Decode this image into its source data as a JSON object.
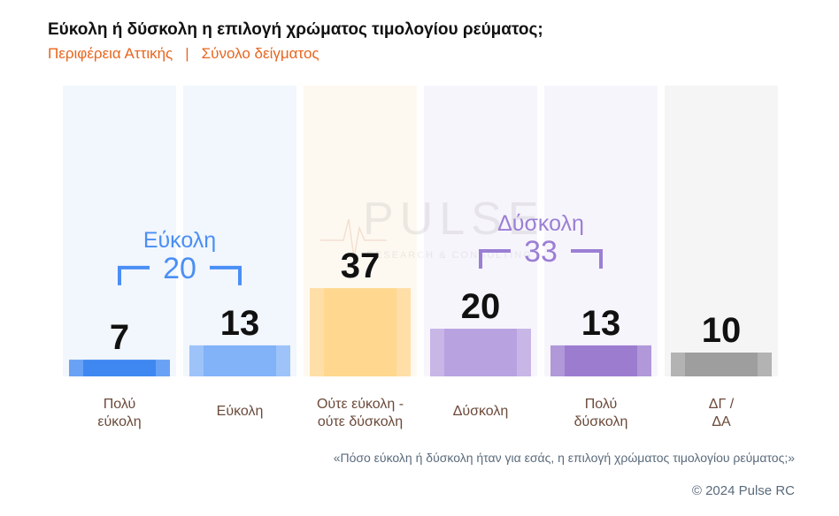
{
  "header": {
    "title": "Εύκολη ή δύσκολη η επιλογή χρώματος τιμολογίου ρεύματος;",
    "subtitle_region": "Περιφέρεια Αττικής",
    "subtitle_sep": "|",
    "subtitle_sample": "Σύνολο δείγματος"
  },
  "watermark": {
    "text": "PULSE",
    "tagline": "RESEARCH & CONSULTING"
  },
  "chart_data": {
    "type": "bar",
    "categories": [
      [
        "Πολύ",
        "εύκολη"
      ],
      [
        "Εύκολη"
      ],
      [
        "Ούτε εύκολη -",
        "ούτε δύσκολη"
      ],
      [
        "Δύσκολη"
      ],
      [
        "Πολύ",
        "δύσκολη"
      ],
      [
        "ΔΓ /",
        "ΔΑ"
      ]
    ],
    "values": [
      7,
      13,
      37,
      20,
      13,
      10
    ],
    "ylim": [
      0,
      100
    ],
    "bar_colors": [
      "#3f88f2",
      "#82b2f8",
      "#ffd78f",
      "#b9a2e0",
      "#9c7ccf",
      "#9e9e9e"
    ],
    "column_backgrounds": [
      "#f2f6fd",
      "#f2f6fd",
      "#fdf9f1",
      "#f7f5fc",
      "#f7f5fc",
      "#f5f5f5"
    ],
    "groups": [
      {
        "label": "Εύκολη",
        "total": "20",
        "from": 0,
        "to": 1,
        "color": "#4a8ff5"
      },
      {
        "label": "Δύσκολη",
        "total": "33",
        "from": 3,
        "to": 4,
        "color": "#9b7fd4"
      }
    ]
  },
  "footer": {
    "question": "«Πόσο εύκολη ή δύσκολη ήταν για εσάς, η επιλογή χρώματος τιμολογίου ρεύματος;»",
    "copyright": "© 2024 Pulse RC"
  }
}
